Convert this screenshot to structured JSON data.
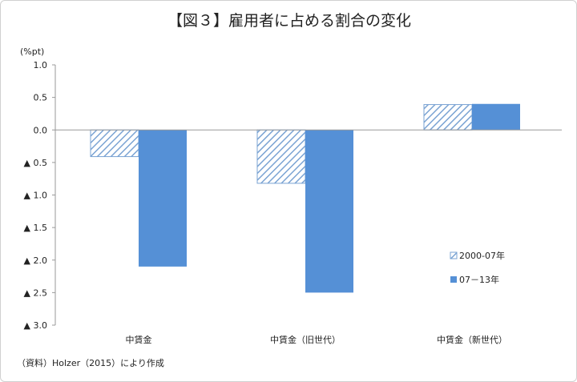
{
  "chart_data": {
    "type": "bar",
    "title": "【図３】雇用者に占める割合の変化",
    "ylabel": "(%pt)",
    "categories": [
      "中賃金",
      "中賃金（旧世代）",
      "中賃金（新世代）"
    ],
    "series": [
      {
        "name": "2000-07年",
        "values": [
          -0.41,
          -0.82,
          0.39
        ],
        "color": "#4f86c6",
        "pattern": "hatched"
      },
      {
        "name": "07－13年",
        "values": [
          -2.1,
          -2.5,
          0.4
        ],
        "color": "#5590d6",
        "pattern": "solid"
      }
    ],
    "ylim": [
      -3.0,
      1.0
    ],
    "yticks": [
      1.0,
      0.5,
      0.0,
      -0.5,
      -1.0,
      -1.5,
      -2.0,
      -2.5,
      -3.0
    ],
    "ytick_labels": [
      "1.0",
      "0.5",
      "0.0",
      "▲ 0.5",
      "▲ 1.0",
      "▲ 1.5",
      "▲ 2.0",
      "▲ 2.5",
      "▲ 3.0"
    ],
    "grid": false,
    "legend": "right"
  },
  "source": "（資料）Holzer（2015）により作成"
}
